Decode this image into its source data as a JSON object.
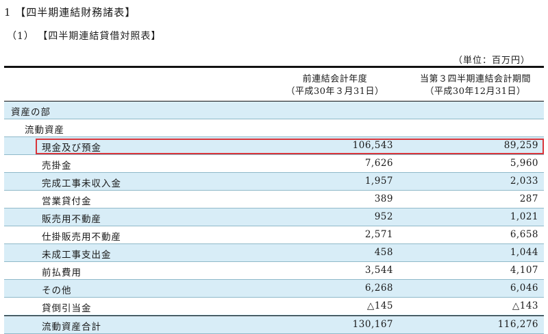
{
  "heading_main": "1 【四半期連結財務諸表】",
  "heading_sub": "（1） 【四半期連結貸借対照表】",
  "unit_note": "（単位：百万円）",
  "columns": {
    "prev_line1": "前連結会計年度",
    "prev_line2": "（平成30年３月31日）",
    "curr_line1": "当第３四半期連結会計期間",
    "curr_line2": "（平成30年12月31日）"
  },
  "rows": [
    {
      "label": "資産の部",
      "prev": "",
      "curr": ""
    },
    {
      "label": "流動資産",
      "prev": "",
      "curr": ""
    },
    {
      "label": "現金及び預金",
      "prev": "106,543",
      "curr": "89,259"
    },
    {
      "label": "売掛金",
      "prev": "7,626",
      "curr": "5,960"
    },
    {
      "label": "完成工事未収入金",
      "prev": "1,957",
      "curr": "2,033"
    },
    {
      "label": "営業貸付金",
      "prev": "389",
      "curr": "287"
    },
    {
      "label": "販売用不動産",
      "prev": "952",
      "curr": "1,021"
    },
    {
      "label": "仕掛販売用不動産",
      "prev": "2,571",
      "curr": "6,658"
    },
    {
      "label": "未成工事支出金",
      "prev": "458",
      "curr": "1,044"
    },
    {
      "label": "前払費用",
      "prev": "3,544",
      "curr": "4,107"
    },
    {
      "label": "その他",
      "prev": "6,268",
      "curr": "6,046"
    },
    {
      "label": "貸倒引当金",
      "prev": "△145",
      "curr": "△143"
    },
    {
      "label": "流動資産合計",
      "prev": "130,167",
      "curr": "116,276"
    }
  ],
  "colors": {
    "row_shade": "#d8edf7",
    "highlight_border": "#d9343a"
  }
}
